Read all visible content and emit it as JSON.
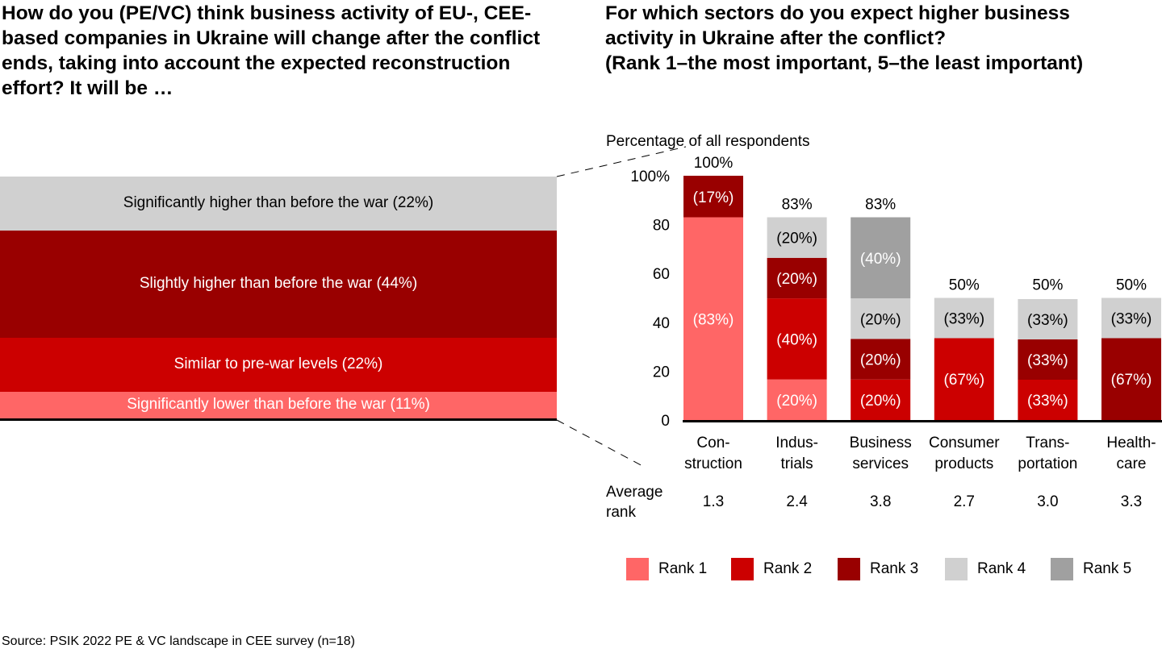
{
  "left_panel": {
    "title": "How do you (PE/VC) think business activity of EU-, CEE-based companies in Ukraine will change after the conflict ends, taking into account the expected reconstruction effort? It will be …",
    "segments": [
      {
        "label": "Significantly higher than before the war (22%)",
        "value": 22,
        "color": "#d0d0d0",
        "text_color": "#000000"
      },
      {
        "label": "Slightly higher than before the war (44%)",
        "value": 44,
        "color": "#990000",
        "text_color": "#ffffff"
      },
      {
        "label": "Similar to pre-war levels (22%)",
        "value": 22,
        "color": "#cc0000",
        "text_color": "#ffffff"
      },
      {
        "label": "Significantly lower than before the war (11%)",
        "value": 11,
        "color": "#ff6666",
        "text_color": "#ffffff"
      }
    ]
  },
  "right_panel": {
    "title_lines": [
      "For which sectors do you expect higher business",
      "activity in Ukraine after the conflict?",
      "(Rank 1–the most important, 5–the least important)"
    ]
  },
  "chart_data": {
    "type": "bar",
    "stacked": true,
    "title": "For which sectors do you expect higher business activity in Ukraine after the conflict? (Rank 1–the most important, 5–the least important)",
    "ylabel": "Percentage of all respondents",
    "ylim": [
      0,
      100
    ],
    "yticks": [
      "0",
      "20",
      "40",
      "60",
      "80",
      "100%"
    ],
    "ytick_values": [
      0,
      20,
      40,
      60,
      80,
      100
    ],
    "categories": [
      [
        "Con-",
        "struction"
      ],
      [
        "Indus-",
        "trials"
      ],
      [
        "Business",
        "services"
      ],
      [
        "Consumer",
        "products"
      ],
      [
        "Trans-",
        "portation"
      ],
      [
        "Health-",
        "care"
      ]
    ],
    "totals": [
      100,
      83,
      83,
      50,
      50,
      50
    ],
    "total_labels": [
      "100%",
      "83%",
      "83%",
      "50%",
      "50%",
      "50%"
    ],
    "series": [
      {
        "name": "Rank 1",
        "color": "#ff6666",
        "text_color": "#ffffff",
        "share_labels": [
          "(83%)",
          "(20%)",
          null,
          null,
          null,
          null
        ],
        "shares": [
          83,
          20,
          0,
          0,
          0,
          0
        ]
      },
      {
        "name": "Rank 2",
        "color": "#cc0000",
        "text_color": "#ffffff",
        "share_labels": [
          null,
          "(40%)",
          "(20%)",
          "(67%)",
          "(33%)",
          null
        ],
        "shares": [
          0,
          40,
          20,
          67,
          33,
          0
        ]
      },
      {
        "name": "Rank 3",
        "color": "#990000",
        "text_color": "#ffffff",
        "share_labels": [
          "(17%)",
          "(20%)",
          "(20%)",
          null,
          "(33%)",
          "(67%)"
        ],
        "shares": [
          17,
          20,
          20,
          0,
          33,
          67
        ]
      },
      {
        "name": "Rank 4",
        "color": "#d0d0d0",
        "text_color": "#000000",
        "share_labels": [
          null,
          "(20%)",
          "(20%)",
          "(33%)",
          "(33%)",
          "(33%)"
        ],
        "shares": [
          0,
          20,
          20,
          33,
          33,
          33
        ]
      },
      {
        "name": "Rank 5",
        "color": "#a0a0a0",
        "text_color": "#ffffff",
        "share_labels": [
          null,
          null,
          "(40%)",
          null,
          null,
          null
        ],
        "shares": [
          0,
          0,
          40,
          0,
          0,
          0
        ]
      }
    ],
    "average_rank_label": [
      "Average",
      "rank"
    ],
    "average_rank": [
      "1.3",
      "2.4",
      "3.8",
      "2.7",
      "3.0",
      "3.3"
    ],
    "legend": [
      "Rank 1",
      "Rank 2",
      "Rank 3",
      "Rank 4",
      "Rank 5"
    ],
    "legend_position": "bottom",
    "grid": false
  },
  "source": "Source: PSIK 2022 PE & VC landscape in CEE survey (n=18)"
}
